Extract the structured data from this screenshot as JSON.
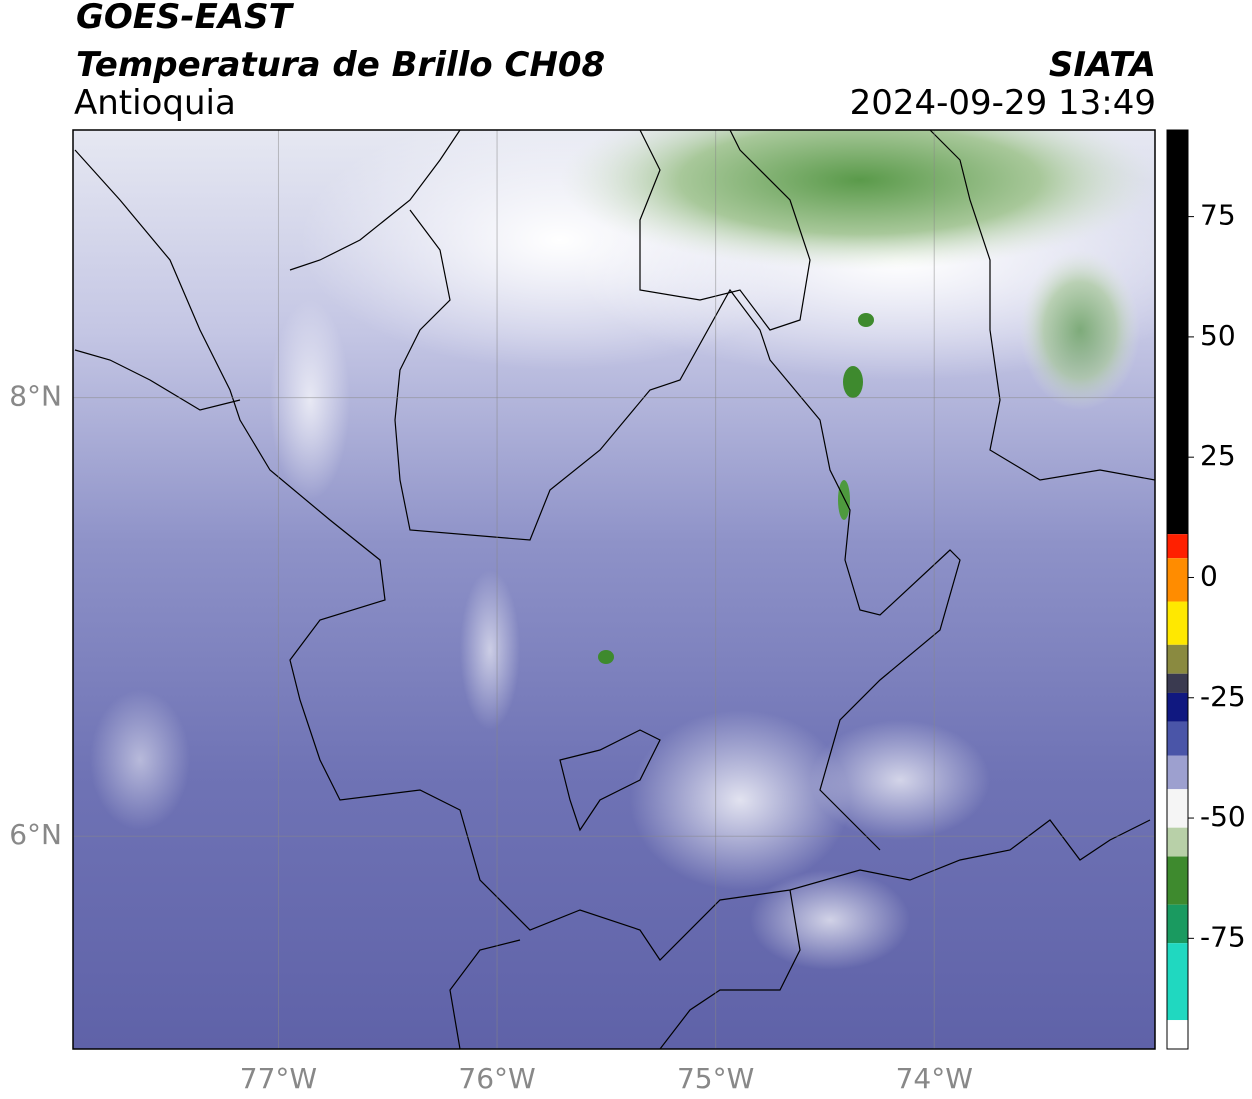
{
  "header": {
    "title": "GOES-EAST",
    "subtitle": "Temperatura de Brillo CH08",
    "region": "Antioquia",
    "source": "SIATA",
    "datetime": "2024-09-29 13:49"
  },
  "map": {
    "xlim": [
      -77.94,
      -72.99
    ],
    "ylim": [
      5.03,
      9.22
    ],
    "xticks": [
      {
        "value": -77,
        "label": "77°W"
      },
      {
        "value": -76,
        "label": "76°W"
      },
      {
        "value": -75,
        "label": "75°W"
      },
      {
        "value": -74,
        "label": "74°W"
      }
    ],
    "yticks": [
      {
        "value": 8,
        "label": "8°N"
      },
      {
        "value": 6,
        "label": "6°N"
      }
    ],
    "grid": true
  },
  "colorbar": {
    "lim": [
      -98,
      93
    ],
    "ticks": [
      75,
      50,
      25,
      0,
      -25,
      -50,
      -75
    ],
    "bands": [
      {
        "from": 93,
        "to": 9,
        "color": "#000000"
      },
      {
        "from": 9,
        "to": 4,
        "color": "#ff2000"
      },
      {
        "from": 4,
        "to": -5,
        "color": "#ff8c00"
      },
      {
        "from": -5,
        "to": -14,
        "color": "#ffe800"
      },
      {
        "from": -14,
        "to": -20,
        "color": "#8a8a40"
      },
      {
        "from": -20,
        "to": -24,
        "color": "#3a3a50"
      },
      {
        "from": -24,
        "to": -30,
        "color": "#101880"
      },
      {
        "from": -30,
        "to": -37,
        "color": "#4a55a8"
      },
      {
        "from": -37,
        "to": -44,
        "color": "#9da0cf"
      },
      {
        "from": -44,
        "to": -52,
        "color": "#f5f5f5"
      },
      {
        "from": -52,
        "to": -58,
        "color": "#b8d0a8"
      },
      {
        "from": -58,
        "to": -68,
        "color": "#3e8a2e"
      },
      {
        "from": -68,
        "to": -76,
        "color": "#1a9a60"
      },
      {
        "from": -76,
        "to": -92,
        "color": "#20d8c0"
      },
      {
        "from": -92,
        "to": -98,
        "color": "#ffffff"
      }
    ]
  }
}
